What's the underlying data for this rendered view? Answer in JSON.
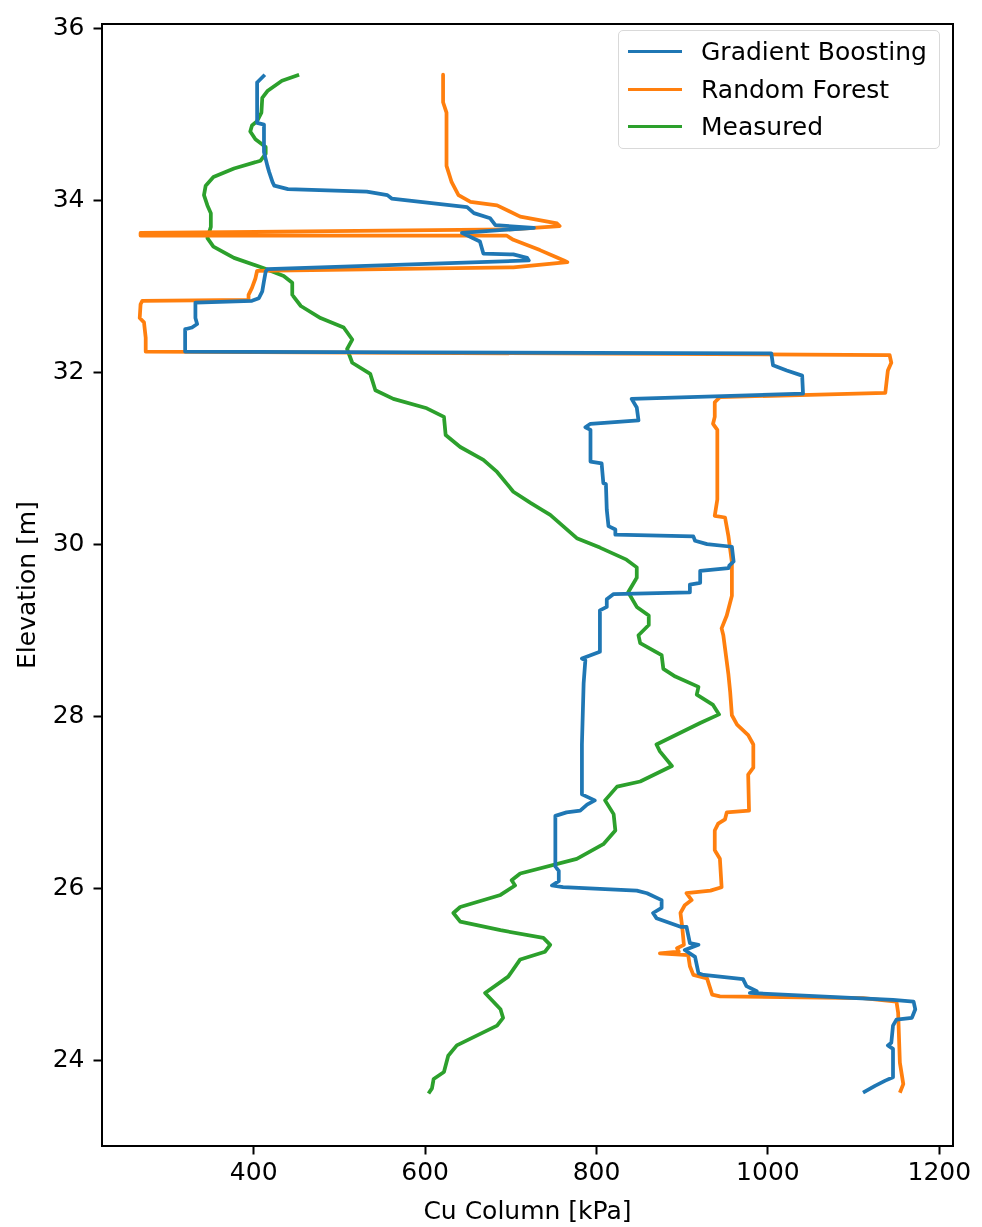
{
  "chart_data": {
    "type": "line",
    "xlabel": "Cu Column [kPa]",
    "ylabel": "Elevation [m]",
    "xlim": [
      223,
      1216
    ],
    "ylim": [
      23.0,
      36.05
    ],
    "xticks": [
      400,
      600,
      800,
      1000,
      1200
    ],
    "yticks": [
      24,
      26,
      28,
      30,
      32,
      34,
      36
    ],
    "grid": false,
    "legend": "top right",
    "marker": "none",
    "line_style": "solid",
    "series": [
      {
        "name": "Gradient Boosting",
        "color": "#1f77b4",
        "x": [
          413,
          404,
          404,
          412,
          412,
          416,
          418,
          422,
          424,
          440,
          532,
          556,
          561,
          649,
          657,
          676,
          682,
          727,
          643,
          664,
          668,
          703,
          719,
          721,
          416,
          414,
          412,
          410,
          406,
          398,
          332,
          332,
          334,
          328,
          320,
          320,
          1004,
          1006,
          1022,
          1040,
          1041,
          841,
          847,
          849,
          793,
          787,
          793,
          793,
          806,
          808,
          811,
          812,
          814,
          822,
          822,
          913,
          915,
          929,
          958,
          960,
          955,
          954,
          921,
          921,
          909,
          909,
          820,
          812,
          812,
          804,
          804,
          783,
          787,
          785,
          783,
          783,
          798,
          789,
          781,
          765,
          752,
          752,
          756,
          756,
          748,
          761,
          847,
          859,
          876,
          876,
          866,
          870,
          898,
          905,
          909,
          919,
          903,
          915,
          919,
          925,
          971,
          975,
          987,
          979,
          1146,
          1170,
          1172,
          1168,
          1150,
          1146,
          1144,
          1140,
          1146,
          1146,
          1137,
          1125,
          1111
        ],
        "values": [
          35.46,
          35.37,
          34.9,
          34.88,
          34.56,
          34.4,
          34.33,
          34.21,
          34.17,
          34.13,
          34.1,
          34.06,
          34.02,
          33.92,
          33.85,
          33.79,
          33.71,
          33.68,
          33.62,
          33.52,
          33.38,
          33.37,
          33.33,
          33.3,
          33.2,
          33.17,
          33.06,
          32.94,
          32.86,
          32.83,
          32.81,
          32.63,
          32.56,
          32.52,
          32.5,
          32.24,
          32.22,
          32.08,
          32.02,
          31.96,
          31.75,
          31.69,
          31.59,
          31.44,
          31.4,
          31.36,
          31.33,
          30.96,
          30.94,
          30.71,
          30.7,
          30.4,
          30.21,
          30.17,
          30.11,
          30.09,
          30.04,
          30.0,
          29.97,
          29.8,
          29.75,
          29.72,
          29.69,
          29.55,
          29.53,
          29.44,
          29.42,
          29.36,
          29.27,
          29.23,
          28.75,
          28.67,
          28.65,
          28.38,
          27.67,
          27.09,
          27.02,
          26.97,
          26.9,
          26.88,
          26.84,
          26.25,
          26.2,
          26.08,
          26.03,
          26.01,
          25.97,
          25.94,
          25.86,
          25.77,
          25.71,
          25.65,
          25.55,
          25.55,
          25.36,
          25.34,
          25.28,
          25.2,
          25.01,
          24.99,
          24.94,
          24.86,
          24.8,
          24.78,
          24.7,
          24.68,
          24.59,
          24.49,
          24.47,
          24.4,
          24.2,
          24.17,
          24.13,
          23.8,
          23.76,
          23.7,
          23.62
        ]
      },
      {
        "name": "Random Forest",
        "color": "#ff7f0e",
        "x": [
          621,
          621,
          625,
          625,
          631,
          639,
          653,
          684,
          711,
          754,
          757,
          700,
          268,
          268,
          695,
          703,
          734,
          762,
          766,
          703,
          404,
          402,
          398,
          394,
          394,
          270,
          268,
          267,
          272,
          274,
          274,
          1142,
          1144,
          1140,
          1137,
          944,
          938,
          938,
          936,
          941,
          941,
          938,
          950,
          954,
          958,
          958,
          952,
          946,
          948,
          954,
          956,
          958,
          964,
          977,
          983,
          983,
          977,
          978,
          952,
          950,
          942,
          938,
          938,
          944,
          946,
          933,
          905,
          911,
          903,
          898,
          900,
          902,
          894,
          896,
          874,
          907,
          909,
          913,
          929,
          935,
          944,
          1111,
          1150,
          1152,
          1154,
          1158,
          1154
        ],
        "values": [
          35.46,
          35.14,
          35.02,
          34.4,
          34.21,
          34.06,
          33.98,
          33.94,
          33.81,
          33.73,
          33.7,
          33.66,
          33.62,
          33.59,
          33.59,
          33.54,
          33.42,
          33.3,
          33.28,
          33.22,
          33.18,
          33.09,
          32.98,
          32.9,
          32.84,
          32.83,
          32.79,
          32.63,
          32.58,
          32.4,
          32.24,
          32.2,
          32.11,
          32.02,
          31.76,
          31.71,
          31.65,
          31.48,
          31.4,
          31.33,
          30.52,
          30.33,
          30.31,
          30.09,
          29.79,
          29.4,
          29.17,
          29.02,
          28.94,
          28.48,
          28.28,
          28.01,
          27.9,
          27.78,
          27.67,
          27.4,
          27.32,
          26.9,
          26.88,
          26.8,
          26.75,
          26.67,
          26.44,
          26.34,
          26.01,
          25.97,
          25.94,
          25.86,
          25.8,
          25.71,
          25.55,
          25.34,
          25.3,
          25.26,
          25.24,
          25.22,
          25.09,
          24.99,
          24.95,
          24.76,
          24.74,
          24.72,
          24.68,
          24.55,
          23.97,
          23.72,
          23.62
        ]
      },
      {
        "name": "Measured",
        "color": "#2ca02c",
        "x": [
          453,
          433,
          416,
          410,
          409,
          404,
          398,
          396,
          402,
          414,
          414,
          408,
          377,
          353,
          344,
          342,
          346,
          350,
          350,
          346,
          353,
          377,
          412,
          435,
          445,
          445,
          455,
          478,
          505,
          515,
          509,
          515,
          536,
          542,
          563,
          602,
          622,
          624,
          641,
          668,
          684,
          703,
          723,
          746,
          777,
          804,
          835,
          847,
          847,
          837,
          847,
          861,
          861,
          849,
          851,
          876,
          878,
          892,
          919,
          917,
          936,
          943,
          921,
          870,
          874,
          888,
          851,
          824,
          810,
          820,
          822,
          808,
          777,
          711,
          701,
          705,
          688,
          641,
          633,
          641,
          688,
          738,
          746,
          740,
          711,
          697,
          670,
          688,
          691,
          684,
          637,
          627,
          622,
          610,
          608,
          604
        ],
        "values": [
          35.46,
          35.39,
          35.27,
          35.19,
          35.02,
          34.92,
          34.87,
          34.8,
          34.71,
          34.62,
          34.54,
          34.46,
          34.37,
          34.27,
          34.17,
          34.06,
          33.94,
          33.85,
          33.69,
          33.56,
          33.46,
          33.33,
          33.21,
          33.12,
          33.04,
          32.9,
          32.77,
          32.63,
          32.52,
          32.38,
          32.27,
          32.11,
          31.98,
          31.79,
          31.69,
          31.58,
          31.48,
          31.27,
          31.13,
          30.98,
          30.84,
          30.61,
          30.48,
          30.34,
          30.07,
          29.96,
          29.82,
          29.73,
          29.61,
          29.44,
          29.27,
          29.17,
          29.06,
          28.94,
          28.85,
          28.71,
          28.55,
          28.46,
          28.34,
          28.25,
          28.13,
          28.02,
          27.92,
          27.67,
          27.59,
          27.42,
          27.24,
          27.18,
          27.02,
          26.86,
          26.67,
          26.51,
          26.34,
          26.17,
          26.09,
          26.03,
          25.92,
          25.78,
          25.71,
          25.61,
          25.51,
          25.42,
          25.34,
          25.26,
          25.17,
          24.97,
          24.78,
          24.59,
          24.49,
          24.4,
          24.17,
          24.05,
          23.86,
          23.78,
          23.67,
          23.61
        ]
      }
    ]
  }
}
